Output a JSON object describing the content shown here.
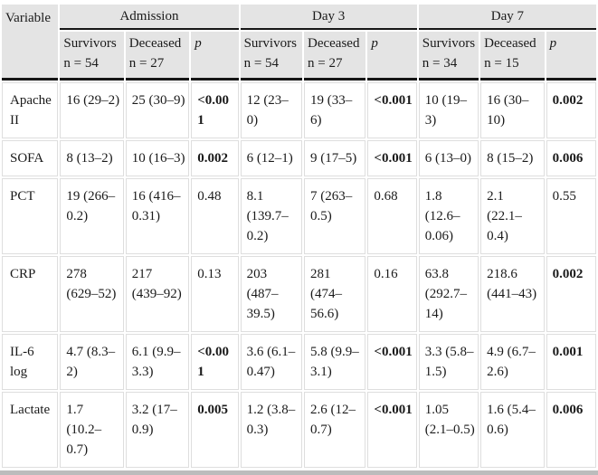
{
  "table": {
    "corner_label": "Variable",
    "groups": [
      {
        "label": "Admission",
        "columns": [
          {
            "title": "Survivors",
            "n": "n = 54"
          },
          {
            "title": "Deceased",
            "n": "n = 27"
          },
          {
            "title": "p",
            "n": ""
          }
        ]
      },
      {
        "label": "Day 3",
        "columns": [
          {
            "title": "Survivors",
            "n": "n = 54"
          },
          {
            "title": "Deceased",
            "n": "n = 27"
          },
          {
            "title": "p",
            "n": ""
          }
        ]
      },
      {
        "label": "Day 7",
        "columns": [
          {
            "title": "Survivors",
            "n": "n = 34"
          },
          {
            "title": "Deceased",
            "n": "n = 15"
          },
          {
            "title": "p",
            "n": ""
          }
        ]
      }
    ],
    "rows": [
      {
        "variable": "Apache II",
        "values": [
          {
            "text": "16 (29–2)",
            "bold": false
          },
          {
            "text": "25 (30–9)",
            "bold": false
          },
          {
            "text": "<0.001",
            "bold": true
          },
          {
            "text": "12 (23–0)",
            "bold": false
          },
          {
            "text": "19 (33–6)",
            "bold": false
          },
          {
            "text": "<0.001",
            "bold": true
          },
          {
            "text": "10 (19–3)",
            "bold": false
          },
          {
            "text": "16 (30–10)",
            "bold": false
          },
          {
            "text": "0.002",
            "bold": true
          }
        ]
      },
      {
        "variable": "SOFA",
        "values": [
          {
            "text": "8 (13–2)",
            "bold": false
          },
          {
            "text": "10 (16–3)",
            "bold": false
          },
          {
            "text": "0.002",
            "bold": true
          },
          {
            "text": "6 (12–1)",
            "bold": false
          },
          {
            "text": "9 (17–5)",
            "bold": false
          },
          {
            "text": "<0.001",
            "bold": true
          },
          {
            "text": "6 (13–0)",
            "bold": false
          },
          {
            "text": "8 (15–2)",
            "bold": false
          },
          {
            "text": "0.006",
            "bold": true
          }
        ]
      },
      {
        "variable": "PCT",
        "values": [
          {
            "text": "19 (266–0.2)",
            "bold": false
          },
          {
            "text": "16 (416–0.31)",
            "bold": false
          },
          {
            "text": "0.48",
            "bold": false
          },
          {
            "text": "8.1 (139.7–0.2)",
            "bold": false
          },
          {
            "text": "7 (263–0.5)",
            "bold": false
          },
          {
            "text": "0.68",
            "bold": false
          },
          {
            "text": "1.8 (12.6–0.06)",
            "bold": false
          },
          {
            "text": "2.1 (22.1–0.4)",
            "bold": false
          },
          {
            "text": "0.55",
            "bold": false
          }
        ]
      },
      {
        "variable": "CRP",
        "values": [
          {
            "text": "278 (629–52)",
            "bold": false
          },
          {
            "text": "217 (439–92)",
            "bold": false
          },
          {
            "text": "0.13",
            "bold": false
          },
          {
            "text": "203 (487–39.5)",
            "bold": false
          },
          {
            "text": "281 (474–56.6)",
            "bold": false
          },
          {
            "text": "0.16",
            "bold": false
          },
          {
            "text": "63.8 (292.7–14)",
            "bold": false
          },
          {
            "text": "218.6 (441–43)",
            "bold": false
          },
          {
            "text": "0.002",
            "bold": true
          }
        ]
      },
      {
        "variable": "IL-6 log",
        "values": [
          {
            "text": "4.7 (8.3–2)",
            "bold": false
          },
          {
            "text": "6.1 (9.9–3.3)",
            "bold": false
          },
          {
            "text": "<0.001",
            "bold": true
          },
          {
            "text": "3.6 (6.1–0.47)",
            "bold": false
          },
          {
            "text": "5.8 (9.9–3.1)",
            "bold": false
          },
          {
            "text": "<0.001",
            "bold": true
          },
          {
            "text": "3.3 (5.8–1.5)",
            "bold": false
          },
          {
            "text": "4.9 (6.7–2.6)",
            "bold": false
          },
          {
            "text": "0.001",
            "bold": true
          }
        ]
      },
      {
        "variable": "Lactate",
        "values": [
          {
            "text": "1.7 (10.2–0.7)",
            "bold": false
          },
          {
            "text": "3.2 (17–0.9)",
            "bold": false
          },
          {
            "text": "0.005",
            "bold": true
          },
          {
            "text": "1.2 (3.8–0.3)",
            "bold": false
          },
          {
            "text": "2.6 (12–0.7)",
            "bold": false
          },
          {
            "text": "<0.001",
            "bold": true
          },
          {
            "text": "1.05 (2.1–0.5)",
            "bold": false
          },
          {
            "text": "1.6 (5.4–0.6)",
            "bold": false
          },
          {
            "text": "0.006",
            "bold": true
          }
        ]
      }
    ]
  }
}
